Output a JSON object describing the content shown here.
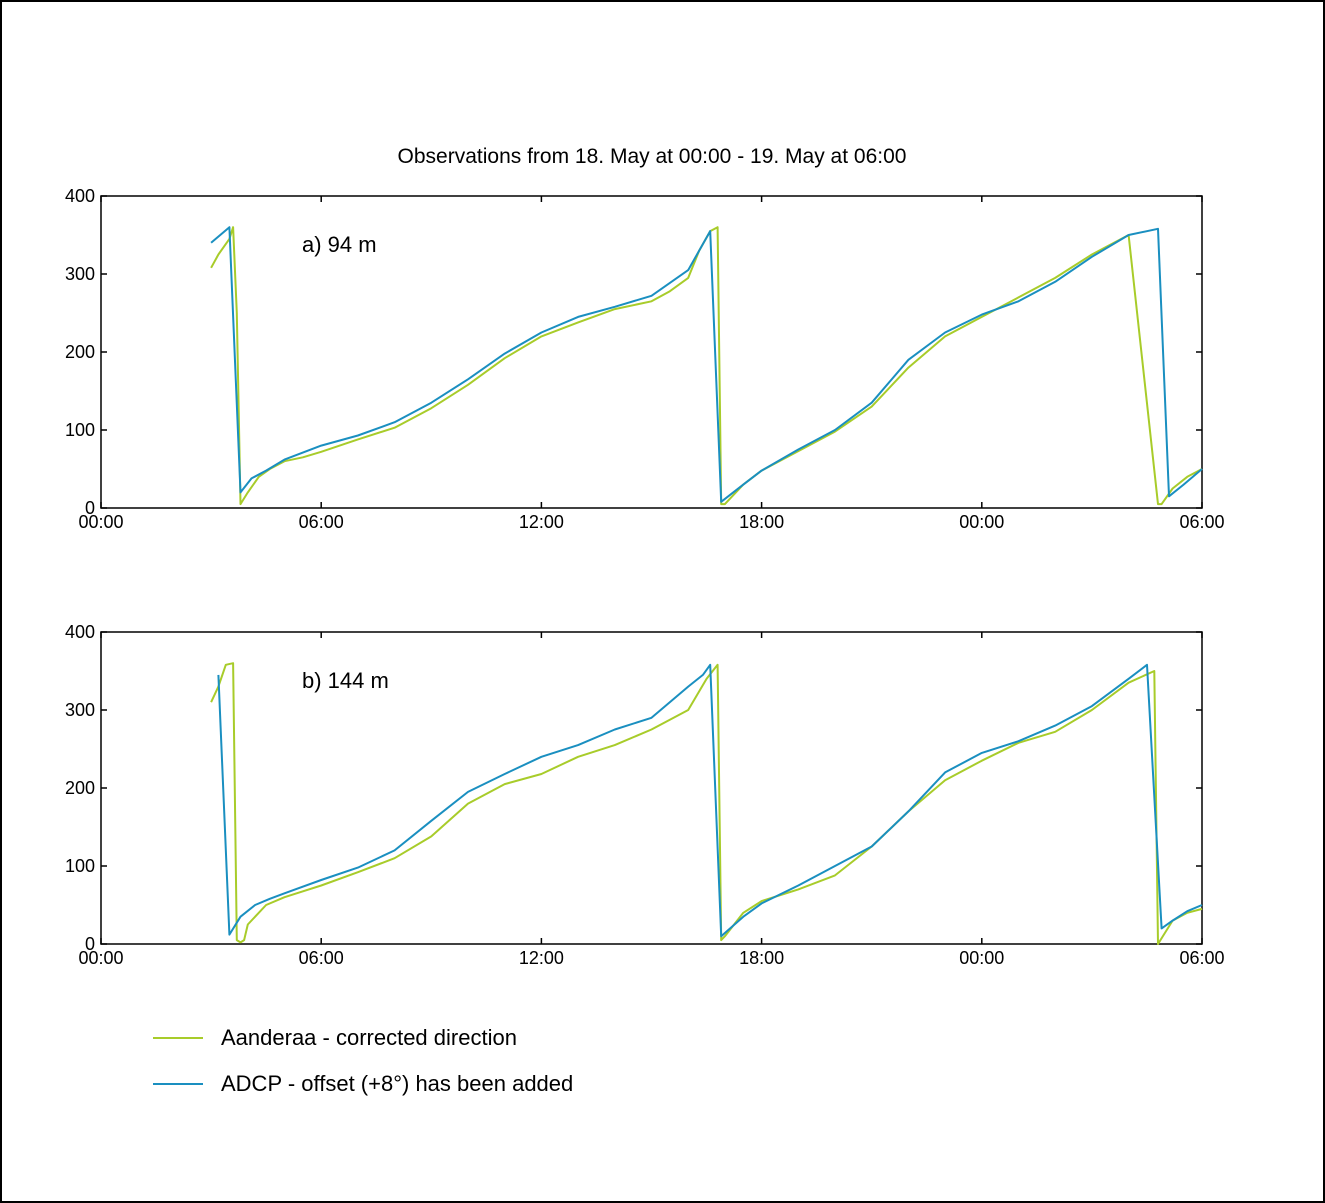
{
  "chart_data": [
    {
      "type": "line",
      "title": "Observations from 18. May at 00:00 - 19. May at 06:00",
      "annotation": "a) 94 m",
      "xlim": [
        0,
        30
      ],
      "ylim": [
        0,
        400
      ],
      "xticks": [
        "00:00",
        "06:00",
        "12:00",
        "18:00",
        "00:00",
        "06:00"
      ],
      "yticks": [
        "0",
        "100",
        "200",
        "300",
        "400"
      ],
      "series": [
        {
          "name": "Aanderaa - corrected direction",
          "color": "#a8cc2a",
          "x": [
            3.0,
            3.2,
            3.5,
            3.6,
            3.7,
            3.8,
            4.0,
            4.3,
            4.6,
            5.0,
            5.5,
            6.0,
            7.0,
            8.0,
            9.0,
            10.0,
            11.0,
            12.0,
            13.0,
            14.0,
            15.0,
            15.5,
            16.0,
            16.3,
            16.6,
            16.8,
            16.9,
            17.0,
            17.5,
            18.0,
            19.0,
            20.0,
            21.0,
            22.0,
            23.0,
            24.0,
            25.0,
            26.0,
            27.0,
            28.0,
            28.8,
            28.9,
            29.2,
            29.6,
            30.0
          ],
          "y": [
            308,
            325,
            345,
            360,
            250,
            5,
            20,
            40,
            50,
            60,
            65,
            72,
            88,
            103,
            128,
            158,
            192,
            220,
            238,
            255,
            265,
            278,
            295,
            330,
            355,
            360,
            5,
            5,
            30,
            48,
            73,
            98,
            130,
            180,
            220,
            245,
            270,
            295,
            325,
            350,
            5,
            5,
            25,
            40,
            50
          ]
        },
        {
          "name": "ADCP - offset (+8°) has been added",
          "color": "#1a8fc0",
          "x": [
            3.0,
            3.5,
            3.8,
            4.1,
            4.5,
            5.0,
            6.0,
            7.0,
            8.0,
            9.0,
            10.0,
            11.0,
            12.0,
            13.0,
            14.0,
            15.0,
            16.0,
            16.6,
            16.9,
            17.5,
            18.0,
            19.0,
            20.0,
            21.0,
            22.0,
            23.0,
            24.0,
            25.0,
            26.0,
            27.0,
            28.0,
            28.8,
            29.1,
            29.5,
            30.0
          ],
          "y": [
            340,
            360,
            20,
            38,
            48,
            62,
            80,
            93,
            110,
            135,
            165,
            198,
            225,
            245,
            258,
            272,
            305,
            355,
            8,
            30,
            48,
            75,
            100,
            135,
            190,
            225,
            248,
            265,
            290,
            322,
            350,
            358,
            15,
            30,
            50
          ]
        }
      ]
    },
    {
      "type": "line",
      "title": "",
      "annotation": "b) 144 m",
      "xlim": [
        0,
        30
      ],
      "ylim": [
        0,
        400
      ],
      "xticks": [
        "00:00",
        "06:00",
        "12:00",
        "18:00",
        "00:00",
        "06:00"
      ],
      "yticks": [
        "0",
        "100",
        "200",
        "300",
        "400"
      ],
      "series": [
        {
          "name": "Aanderaa - corrected direction",
          "color": "#a8cc2a",
          "x": [
            3.0,
            3.2,
            3.4,
            3.6,
            3.7,
            3.8,
            3.9,
            4.0,
            4.5,
            5.0,
            6.0,
            7.0,
            8.0,
            9.0,
            10.0,
            11.0,
            12.0,
            13.0,
            14.0,
            15.0,
            16.0,
            16.5,
            16.8,
            16.9,
            17.0,
            17.5,
            18.0,
            19.0,
            20.0,
            21.0,
            22.0,
            23.0,
            24.0,
            25.0,
            26.0,
            27.0,
            28.0,
            28.7,
            28.8,
            29.2,
            29.6,
            30.0
          ],
          "y": [
            310,
            330,
            358,
            360,
            5,
            2,
            5,
            25,
            50,
            60,
            75,
            92,
            110,
            138,
            180,
            205,
            218,
            240,
            255,
            275,
            300,
            340,
            358,
            5,
            10,
            40,
            55,
            70,
            88,
            125,
            170,
            210,
            235,
            258,
            272,
            300,
            335,
            350,
            0,
            30,
            40,
            45
          ]
        },
        {
          "name": "ADCP - offset (+8°) has been added",
          "color": "#1a8fc0",
          "x": [
            3.2,
            3.5,
            3.8,
            4.2,
            4.6,
            5.0,
            6.0,
            7.0,
            8.0,
            9.0,
            10.0,
            11.0,
            12.0,
            13.0,
            14.0,
            15.0,
            16.0,
            16.4,
            16.6,
            16.9,
            17.5,
            18.0,
            19.0,
            20.0,
            21.0,
            22.0,
            23.0,
            24.0,
            25.0,
            26.0,
            27.0,
            28.0,
            28.5,
            28.9,
            29.2,
            29.6,
            30.0
          ],
          "y": [
            345,
            12,
            35,
            50,
            58,
            65,
            82,
            98,
            120,
            158,
            195,
            218,
            240,
            255,
            275,
            290,
            330,
            345,
            358,
            10,
            35,
            52,
            75,
            100,
            125,
            170,
            220,
            245,
            260,
            280,
            305,
            340,
            358,
            20,
            30,
            42,
            50
          ]
        }
      ]
    }
  ],
  "legend": [
    {
      "label": "Aanderaa - corrected direction",
      "color": "#a8cc2a"
    },
    {
      "label": "ADCP - offset (+8°) has been added",
      "color": "#1a8fc0"
    }
  ]
}
